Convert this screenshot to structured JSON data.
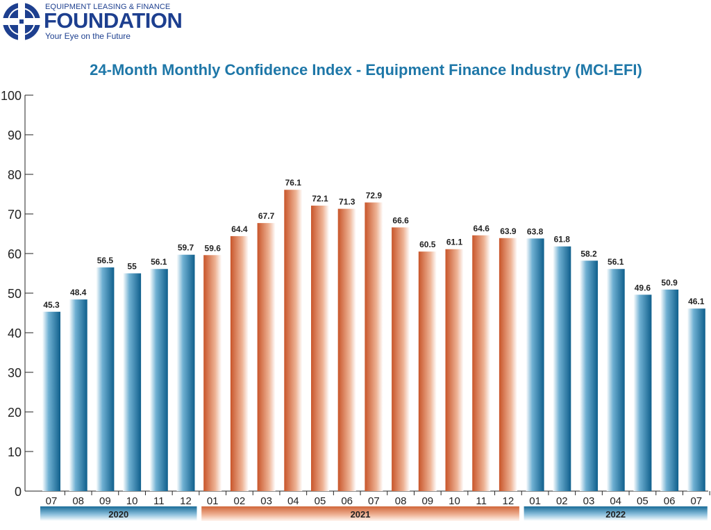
{
  "logo": {
    "top_line": "EQUIPMENT LEASING & FINANCE",
    "name": "FOUNDATION",
    "tagline": "Your Eye on the Future"
  },
  "colors": {
    "blue": "#1a6c98",
    "orange": "#d0663a",
    "title": "#1e77a8",
    "logo": "#1d3f8f"
  },
  "chart_data": {
    "type": "bar",
    "title": "24-Month Monthly Confidence Index - Equipment Finance Industry (MCI-EFI)",
    "xlabel": "",
    "ylabel": "",
    "ylim": [
      0,
      100
    ],
    "yticks": [
      0,
      10,
      20,
      30,
      40,
      50,
      60,
      70,
      80,
      90,
      100
    ],
    "grid": false,
    "categories": [
      "07",
      "08",
      "09",
      "10",
      "11",
      "12",
      "01",
      "02",
      "03",
      "04",
      "05",
      "06",
      "07",
      "08",
      "09",
      "10",
      "11",
      "12",
      "01",
      "02",
      "03",
      "04",
      "05",
      "06",
      "07"
    ],
    "values": [
      45.3,
      48.4,
      56.5,
      55,
      56.1,
      59.7,
      59.6,
      64.4,
      67.7,
      76.1,
      72.1,
      71.3,
      72.9,
      66.6,
      60.5,
      61.1,
      64.6,
      63.9,
      63.8,
      61.8,
      58.2,
      56.1,
      49.6,
      50.9,
      46.1
    ],
    "year_groups": [
      {
        "label": "2020",
        "start": 0,
        "end": 5,
        "color": "blue"
      },
      {
        "label": "2021",
        "start": 6,
        "end": 17,
        "color": "orange"
      },
      {
        "label": "2022",
        "start": 18,
        "end": 24,
        "color": "blue"
      }
    ]
  }
}
